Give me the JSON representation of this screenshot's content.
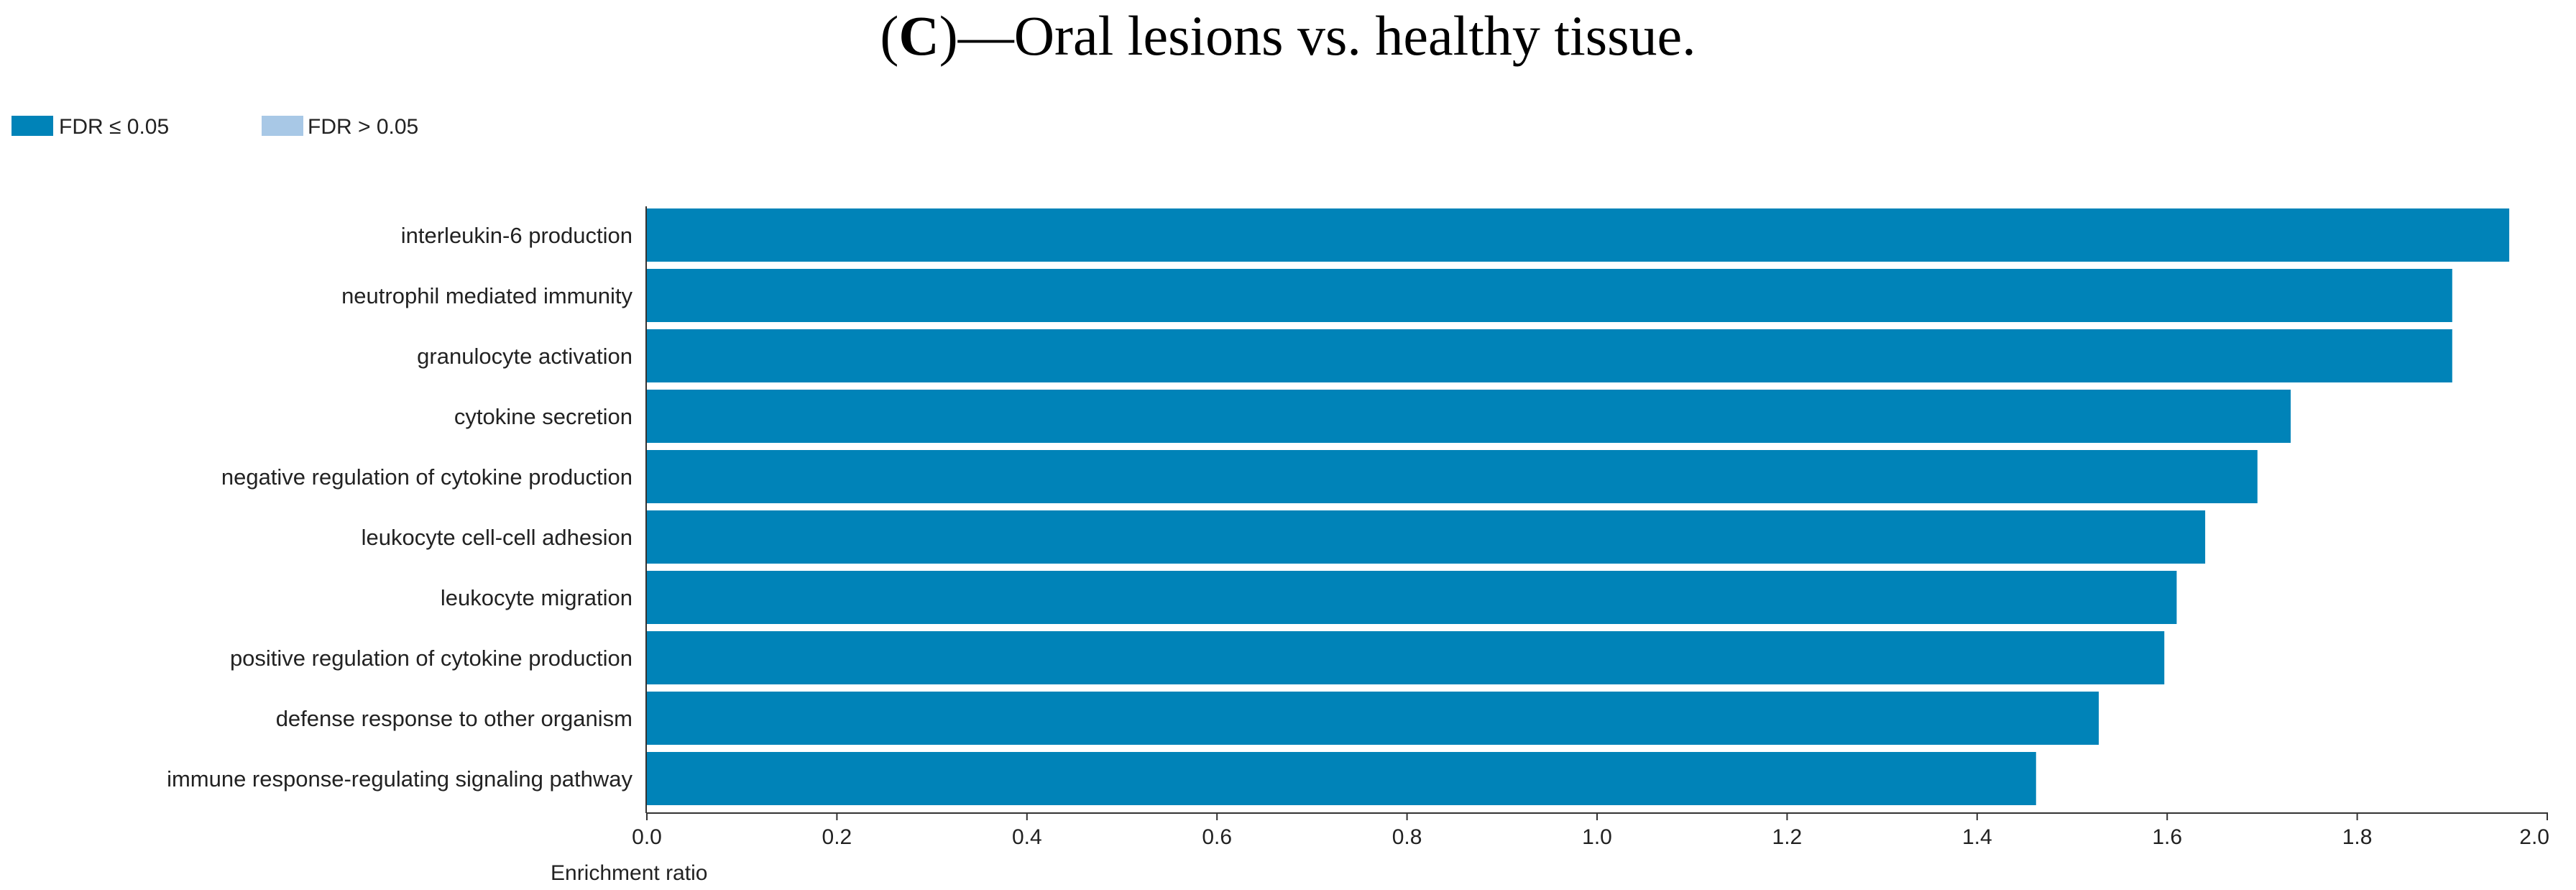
{
  "figure": {
    "title_open": "(",
    "title_letter": "C",
    "title_rest": ")—Oral lesions vs. healthy tissue."
  },
  "chart_data": {
    "type": "bar",
    "orientation": "horizontal",
    "title": "",
    "xlabel": "Enrichment ratio",
    "ylabel": "",
    "xlim": [
      0,
      2.0
    ],
    "xticks": [
      "0.0",
      "0.2",
      "0.4",
      "0.6",
      "0.8",
      "1.0",
      "1.2",
      "1.4",
      "1.6",
      "1.8",
      "2.0"
    ],
    "grid": false,
    "legend": {
      "placement": "top-left",
      "entries": [
        {
          "label": "FDR ≤ 0.05",
          "color": "#0083b8"
        },
        {
          "label": "FDR > 0.05",
          "color": "#a8c8e6"
        }
      ]
    },
    "categories": [
      "interleukin-6 production",
      "neutrophil mediated immunity",
      "granulocyte activation",
      "cytokine secretion",
      "negative regulation of cytokine production",
      "leukocyte cell-cell adhesion",
      "leukocyte migration",
      "positive regulation of cytokine production",
      "defense response to other organism",
      "immune response-regulating signaling pathway"
    ],
    "values": [
      1.96,
      1.9,
      1.9,
      1.73,
      1.695,
      1.64,
      1.61,
      1.597,
      1.528,
      1.462
    ],
    "bar_color": "#0083b8"
  }
}
